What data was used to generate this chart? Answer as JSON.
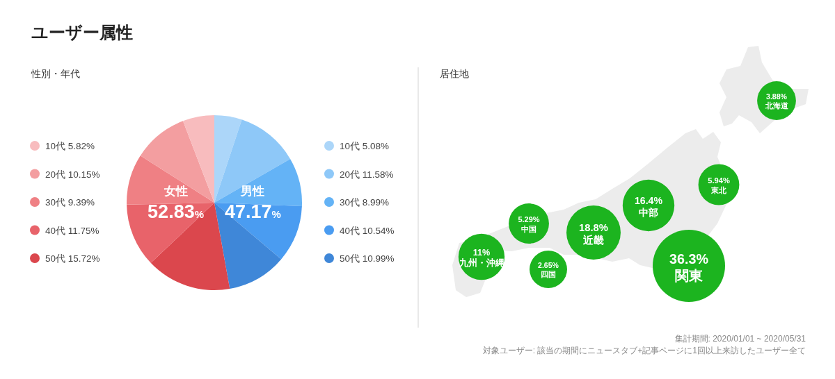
{
  "chart_data": [
    {
      "type": "pie",
      "title": "ユーザー属性",
      "subtitle": "性別・年代",
      "categories": [
        "10代",
        "20代",
        "30代",
        "40代",
        "50代",
        "50代",
        "40代",
        "30代",
        "20代",
        "10代"
      ],
      "values": [
        5.08,
        11.58,
        8.99,
        10.54,
        10.99,
        15.72,
        11.75,
        9.39,
        10.15,
        5.82
      ],
      "value_labels": [
        "5.08%",
        "11.58%",
        "8.99%",
        "10.54%",
        "10.99%",
        "15.72%",
        "11.75%",
        "9.39%",
        "10.15%",
        "5.82%"
      ],
      "colors": [
        "#acd6f9",
        "#8ec8f8",
        "#64b3f6",
        "#4a9cf1",
        "#3f87d8",
        "#db474d",
        "#e8636a",
        "#ef8084",
        "#f39ea0",
        "#f8bcbe"
      ],
      "legend": "left, right",
      "annotations": [
        "女性 52.83%",
        "男性 47.17%"
      ]
    },
    {
      "type": "other",
      "title": "居住地",
      "categories": [
        "北海道",
        "東北",
        "中部",
        "関東",
        "近畿",
        "中国",
        "四国",
        "九州・沖縄"
      ],
      "values": [
        3.88,
        5.94,
        16.4,
        36.3,
        18.8,
        5.29,
        2.65,
        11
      ],
      "value_labels": [
        "3.88%",
        "5.94%",
        "16.4%",
        "36.3%",
        "18.8%",
        "5.29%",
        "2.65%",
        "11%"
      ],
      "color": "#1cb41f",
      "annotations": [
        "集計期間: 2020/01/01 ~ 2020/05/31",
        "対象ユーザー: 該当の期間にニュースタブ+記事ページに1回以上来訪したユーザー全て"
      ]
    }
  ]
}
